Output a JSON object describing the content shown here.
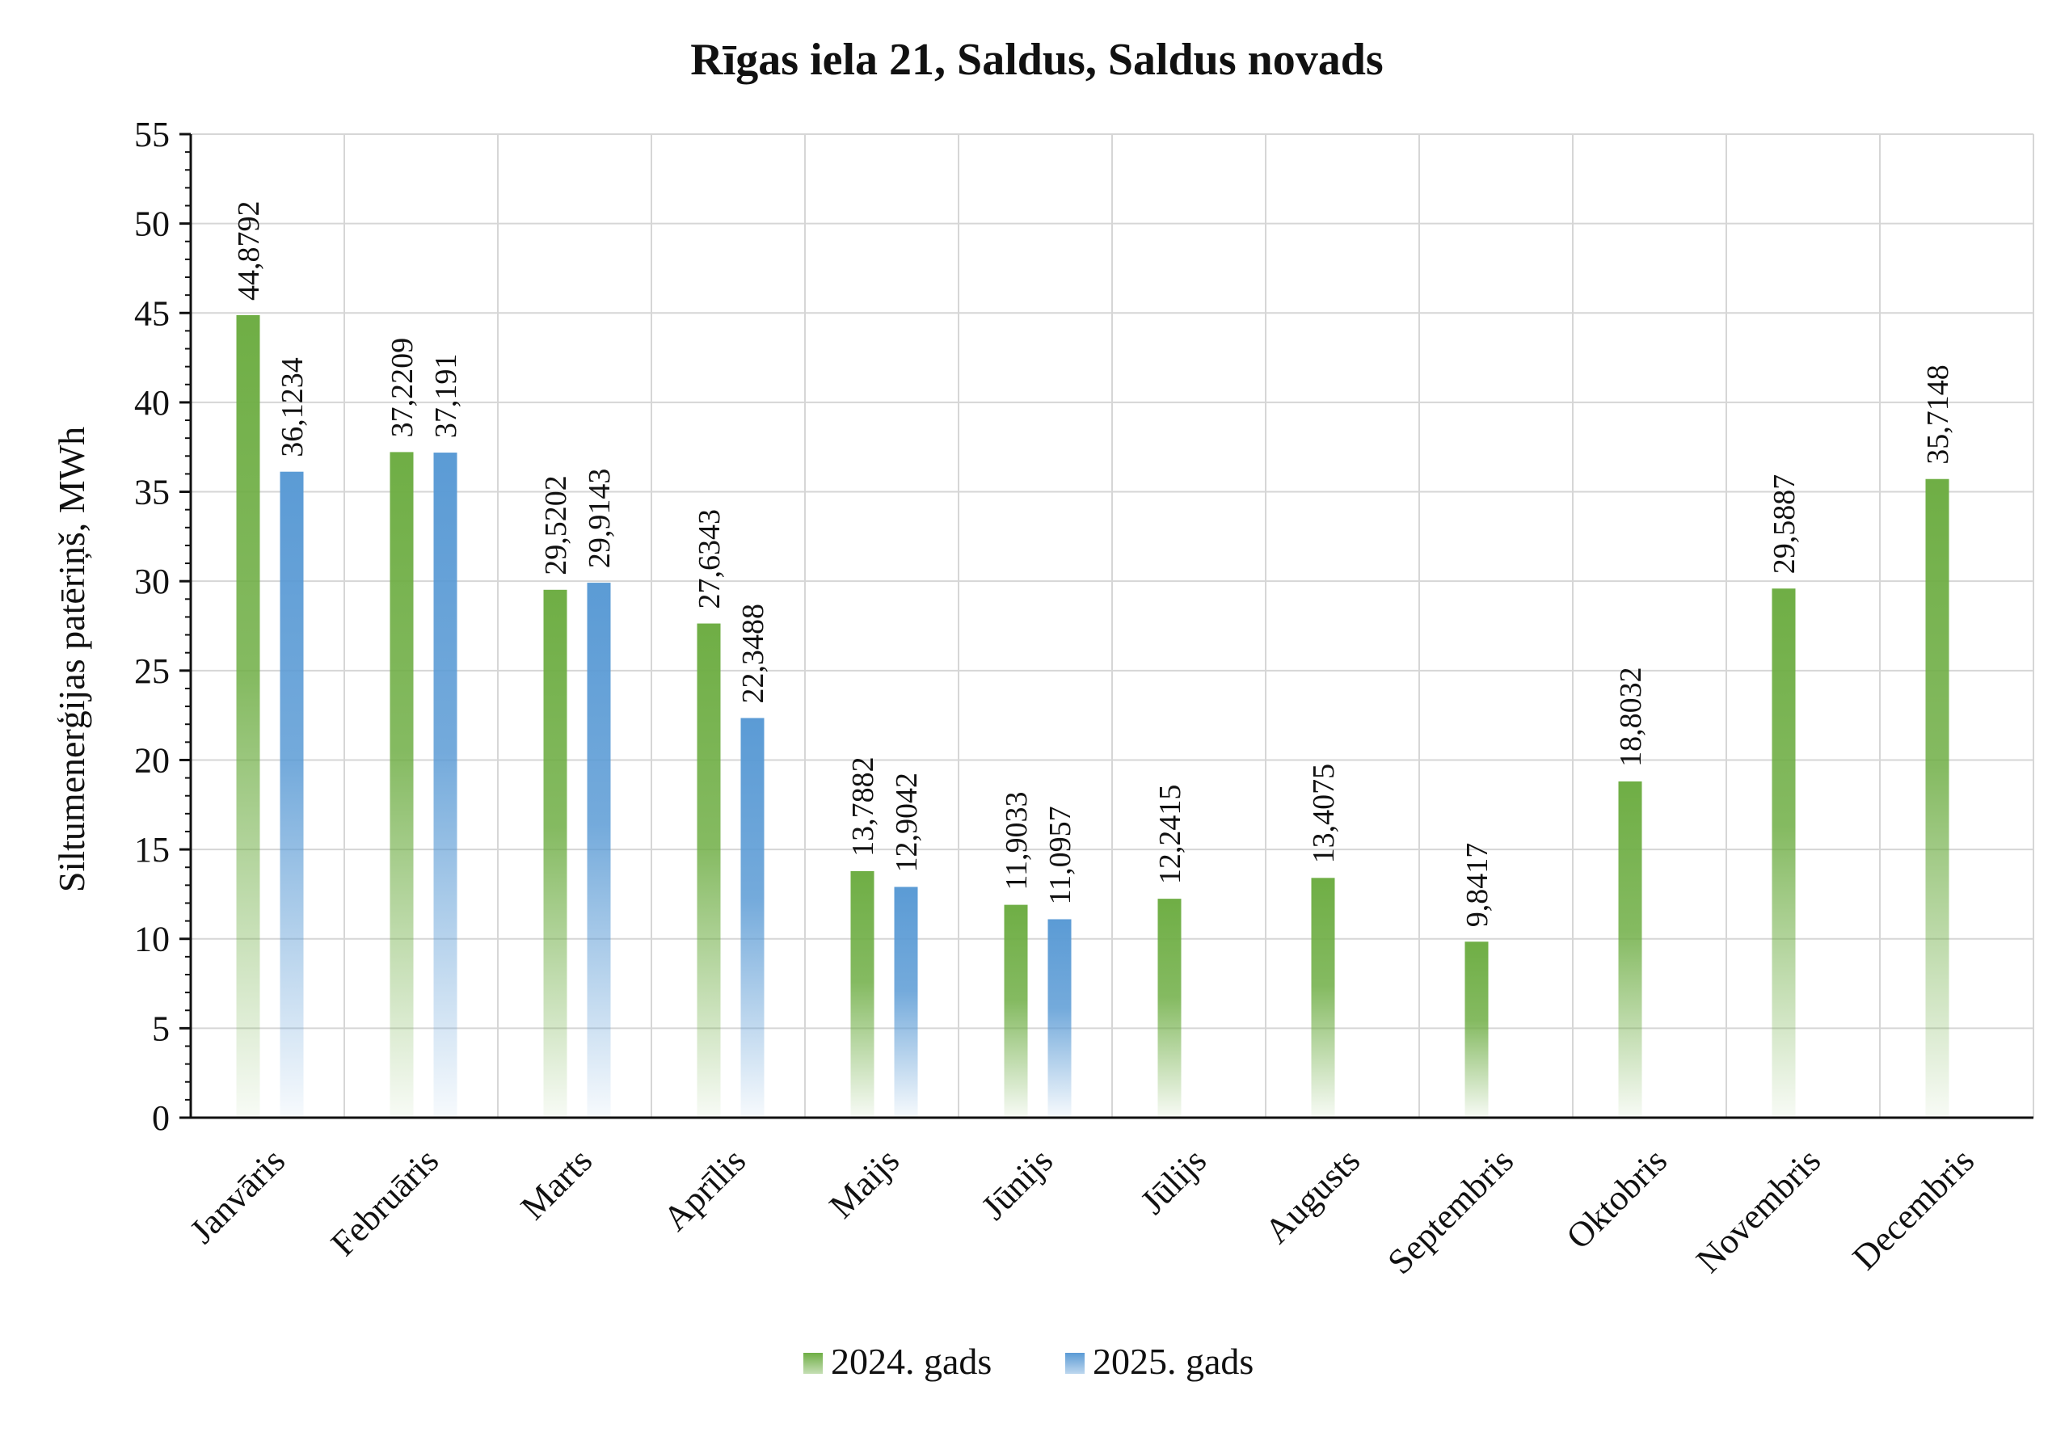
{
  "chart_data": {
    "type": "bar",
    "title": "Rīgas iela 21, Saldus, Saldus novads",
    "xlabel": "",
    "ylabel": "Siltumenerģijas patēriņš, MWh",
    "ylim": [
      0,
      55
    ],
    "ytick_step": 5,
    "ytick_labels": [
      "0",
      "5",
      "10",
      "15",
      "20",
      "25",
      "30",
      "35",
      "40",
      "45",
      "50",
      "55"
    ],
    "grid": true,
    "legend_position": "bottom",
    "categories": [
      "Janvāris",
      "Februāris",
      "Marts",
      "Aprīlis",
      "Maijs",
      "Jūnijs",
      "Jūlijs",
      "Augusts",
      "Septembris",
      "Oktobris",
      "Novembris",
      "Decembris"
    ],
    "series": [
      {
        "name": "2024. gads",
        "color": "#6fae45",
        "values": [
          44.8792,
          37.2209,
          29.5202,
          27.6343,
          13.7882,
          11.9033,
          12.2415,
          13.4075,
          9.8417,
          18.8032,
          29.5887,
          35.7148
        ],
        "labels": [
          "44,8792",
          "37,2209",
          "29,5202",
          "27,6343",
          "13,7882",
          "11,9033",
          "12,2415",
          "13,4075",
          "9,8417",
          "18,8032",
          "29,5887",
          "35,7148"
        ]
      },
      {
        "name": "2025. gads",
        "color": "#5b9bd5",
        "values": [
          36.1234,
          37.191,
          29.9143,
          22.3488,
          12.9042,
          11.0957,
          null,
          null,
          null,
          null,
          null,
          null
        ],
        "labels": [
          "36,1234",
          "37,191",
          "29,9143",
          "22,3488",
          "12,9042",
          "11,0957",
          "",
          "",
          "",
          "",
          "",
          ""
        ]
      }
    ]
  }
}
